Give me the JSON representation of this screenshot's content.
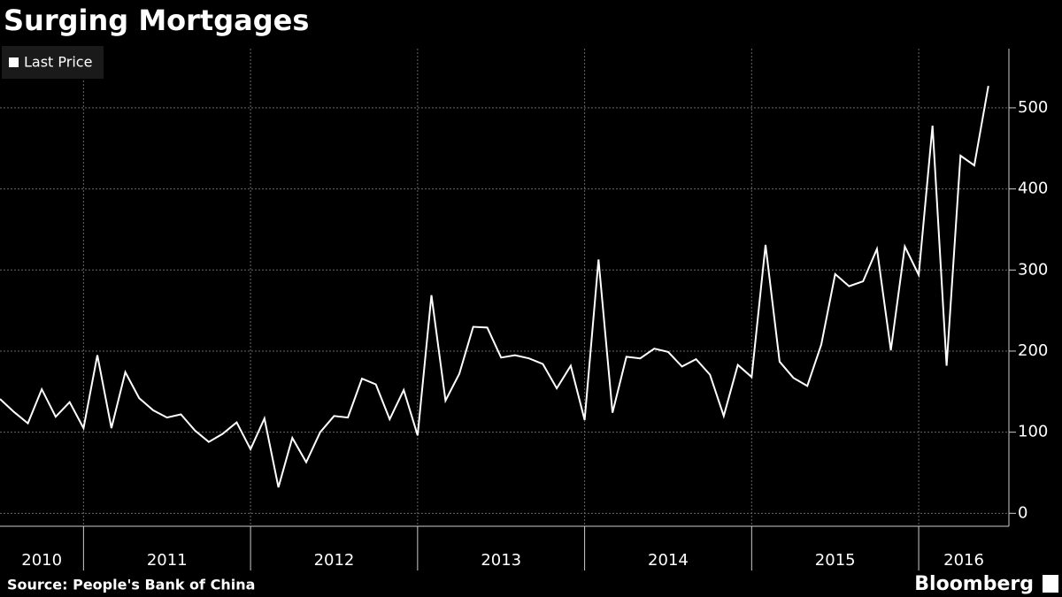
{
  "chart_data": {
    "type": "line",
    "title": "Surging Mortgages",
    "source": "Source: People's Bank of China",
    "brand": "Bloomberg",
    "legend": "top-left",
    "grid": true,
    "x": [
      2010.5,
      2010.583,
      2010.667,
      2010.75,
      2010.833,
      2010.917,
      2011,
      2011.083,
      2011.167,
      2011.25,
      2011.333,
      2011.417,
      2011.5,
      2011.583,
      2011.667,
      2011.75,
      2011.833,
      2011.917,
      2012,
      2012.083,
      2012.167,
      2012.25,
      2012.333,
      2012.417,
      2012.5,
      2012.583,
      2012.667,
      2012.75,
      2012.833,
      2012.917,
      2013,
      2013.083,
      2013.167,
      2013.25,
      2013.333,
      2013.417,
      2013.5,
      2013.583,
      2013.667,
      2013.75,
      2013.833,
      2013.917,
      2014,
      2014.083,
      2014.167,
      2014.25,
      2014.333,
      2014.417,
      2014.5,
      2014.583,
      2014.667,
      2014.75,
      2014.833,
      2014.917,
      2015,
      2015.083,
      2015.167,
      2015.25,
      2015.333,
      2015.417,
      2015.5,
      2015.583,
      2015.667,
      2015.75,
      2015.833,
      2015.917,
      2016,
      2016.083,
      2016.167,
      2016.25,
      2016.333,
      2016.417
    ],
    "series": [
      {
        "name": "Last Price",
        "color": "#ffffff",
        "values": [
          141,
          125,
          111,
          153,
          119,
          137,
          105,
          195,
          105,
          174,
          142,
          127,
          118,
          122,
          102,
          88,
          98,
          112,
          79,
          117,
          32,
          93,
          63,
          100,
          120,
          118,
          166,
          159,
          116,
          152,
          96,
          269,
          139,
          172,
          230,
          229,
          192,
          195,
          191,
          184,
          154,
          182,
          115,
          313,
          124,
          193,
          191,
          203,
          199,
          181,
          190,
          171,
          120,
          183,
          168,
          331,
          187,
          167,
          157,
          208,
          295,
          280,
          286,
          326,
          201,
          329,
          294,
          478,
          182,
          441,
          429,
          527
        ]
      }
    ],
    "xlim": [
      2010.5,
      2016.54
    ],
    "xticks": [
      2011,
      2012,
      2013,
      2014,
      2015,
      2016
    ],
    "year_labels": [
      2010,
      2011,
      2012,
      2013,
      2014,
      2015,
      2016
    ],
    "ylim": [
      -16,
      573
    ],
    "yticks": [
      0,
      100,
      200,
      300,
      400,
      500
    ]
  }
}
